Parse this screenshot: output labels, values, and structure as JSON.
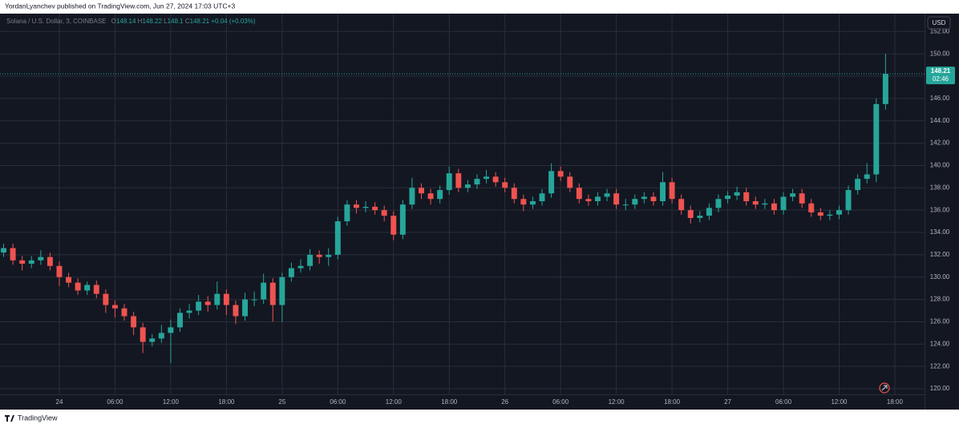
{
  "header": {
    "published": "YordanLyanchev published on TradingView.com, Jun 27, 2024 17:03 UTC+3"
  },
  "footer": {
    "brand": "TradingView"
  },
  "chart_data": {
    "type": "candlestick",
    "symbol": "Solana / U.S. Dollar, 3, COINBASE",
    "legend": {
      "open_label": "O",
      "open": 148.14,
      "high_label": "H",
      "high": 148.22,
      "low_label": "L",
      "low": 148.1,
      "close_label": "C",
      "close": 148.21,
      "change": "+0.04 (+0.03%)"
    },
    "currency": "USD",
    "last_price": {
      "value": 148.21,
      "countdown": "02:46"
    },
    "up_color": "#26a69a",
    "down_color": "#ef5350",
    "grid": true,
    "xlim": [
      -0.39,
      99.2
    ],
    "xticks": [
      {
        "value": 6,
        "label": "24"
      },
      {
        "value": 12,
        "label": "06:00"
      },
      {
        "value": 18,
        "label": "12:00"
      },
      {
        "value": 24,
        "label": "18:00"
      },
      {
        "value": 30,
        "label": "25"
      },
      {
        "value": 36,
        "label": "06:00"
      },
      {
        "value": 42,
        "label": "12:00"
      },
      {
        "value": 48,
        "label": "18:00"
      },
      {
        "value": 54,
        "label": "26"
      },
      {
        "value": 60,
        "label": "06:00"
      },
      {
        "value": 66,
        "label": "12:00"
      },
      {
        "value": 72,
        "label": "18:00"
      },
      {
        "value": 78,
        "label": "27"
      },
      {
        "value": 84,
        "label": "06:00"
      },
      {
        "value": 90,
        "label": "12:00"
      },
      {
        "value": 96,
        "label": "18:00"
      }
    ],
    "ylim": [
      119.5,
      153.6
    ],
    "yticks": [
      {
        "value": 120,
        "label": "120.00"
      },
      {
        "value": 122,
        "label": "122.00"
      },
      {
        "value": 124,
        "label": "124.00"
      },
      {
        "value": 126,
        "label": "126.00"
      },
      {
        "value": 128,
        "label": "128.00"
      },
      {
        "value": 130,
        "label": "130.00"
      },
      {
        "value": 132,
        "label": "132.00"
      },
      {
        "value": 134,
        "label": "134.00"
      },
      {
        "value": 136,
        "label": "136.00"
      },
      {
        "value": 138,
        "label": "138.00"
      },
      {
        "value": 140,
        "label": "140.00"
      },
      {
        "value": 142,
        "label": "142.00"
      },
      {
        "value": 144,
        "label": "144.00"
      },
      {
        "value": 146,
        "label": "146.00"
      },
      {
        "value": 148,
        "label": "148.00"
      },
      {
        "value": 150,
        "label": "150.00"
      },
      {
        "value": 152,
        "label": "152.00"
      }
    ],
    "open": [
      132.2,
      132.6,
      131.5,
      131.2,
      131.5,
      131.8,
      131.0,
      130.0,
      129.5,
      128.8,
      129.3,
      128.5,
      127.5,
      127.2,
      126.5,
      125.5,
      124.2,
      124.5,
      125.0,
      125.5,
      126.8,
      127.0,
      127.8,
      127.5,
      128.5,
      127.5,
      126.5,
      128.0,
      128.0,
      129.5,
      127.5,
      130.0,
      130.8,
      131.0,
      132.0,
      131.8,
      132.0,
      135.0,
      136.5,
      136.2,
      136.3,
      136.0,
      135.5,
      133.8,
      136.5,
      138.0,
      137.5,
      137.0,
      137.8,
      139.3,
      138.0,
      138.3,
      138.8,
      139.0,
      138.5,
      138.0,
      137.0,
      136.5,
      136.8,
      137.5,
      139.5,
      139.0,
      138.0,
      137.0,
      136.8,
      137.2,
      137.5,
      136.5,
      136.5,
      137.0,
      137.2,
      136.8,
      138.5,
      137.0,
      136.0,
      135.3,
      135.5,
      136.2,
      137.0,
      137.3,
      137.6,
      136.8,
      136.5,
      136.6,
      136.0,
      137.2,
      137.5,
      136.6,
      135.8,
      135.5,
      135.6,
      136.0,
      137.8,
      138.8,
      139.2,
      145.5
    ],
    "high": [
      133.0,
      133.0,
      131.9,
      131.9,
      132.4,
      132.2,
      131.4,
      130.4,
      129.9,
      129.6,
      129.7,
      128.9,
      127.9,
      127.6,
      126.9,
      125.9,
      124.9,
      125.7,
      126.2,
      127.2,
      127.6,
      128.4,
      128.3,
      129.6,
      128.9,
      127.9,
      128.6,
      128.7,
      130.3,
      129.9,
      130.4,
      131.3,
      131.6,
      132.5,
      132.4,
      132.6,
      135.4,
      136.9,
      136.9,
      136.8,
      136.7,
      136.4,
      135.9,
      136.9,
      138.9,
      138.4,
      137.9,
      138.2,
      139.9,
      139.7,
      138.7,
      139.2,
      139.6,
      139.4,
      138.9,
      138.4,
      137.4,
      137.2,
      137.9,
      140.2,
      139.9,
      139.4,
      138.4,
      137.4,
      137.6,
      137.9,
      137.9,
      137.0,
      137.4,
      137.6,
      137.6,
      139.4,
      138.9,
      137.4,
      136.4,
      135.9,
      136.6,
      137.4,
      137.7,
      138.1,
      138.0,
      137.2,
      137.0,
      137.0,
      137.6,
      137.9,
      137.9,
      137.0,
      136.2,
      136.0,
      136.4,
      138.2,
      139.2,
      140.2,
      146.0,
      150.0
    ],
    "low": [
      131.8,
      131.1,
      130.6,
      130.8,
      131.1,
      130.6,
      129.2,
      129.1,
      128.4,
      128.4,
      128.1,
      126.8,
      126.4,
      126.1,
      124.8,
      123.2,
      123.8,
      124.1,
      122.3,
      125.1,
      126.3,
      126.6,
      126.9,
      127.1,
      126.6,
      125.8,
      126.1,
      127.4,
      127.6,
      126.0,
      126.0,
      129.6,
      130.4,
      130.6,
      131.2,
      131.0,
      131.6,
      134.6,
      135.7,
      135.8,
      135.6,
      135.0,
      133.3,
      133.4,
      136.1,
      137.0,
      136.5,
      136.6,
      137.4,
      137.6,
      137.6,
      137.9,
      138.4,
      138.1,
      137.6,
      136.6,
      135.9,
      136.1,
      136.4,
      137.1,
      138.6,
      137.6,
      136.6,
      136.4,
      136.4,
      136.8,
      136.1,
      136.0,
      136.1,
      136.6,
      136.4,
      136.4,
      136.6,
      135.6,
      134.8,
      134.9,
      135.1,
      135.8,
      136.6,
      136.9,
      136.4,
      136.1,
      136.1,
      135.6,
      135.6,
      136.8,
      136.2,
      135.4,
      135.1,
      135.1,
      135.2,
      135.6,
      137.4,
      138.4,
      138.5,
      145.0
    ],
    "close": [
      132.6,
      131.5,
      131.2,
      131.5,
      131.8,
      131.0,
      130.0,
      129.5,
      128.8,
      129.3,
      128.5,
      127.5,
      127.2,
      126.5,
      125.5,
      124.2,
      124.5,
      125.0,
      125.5,
      126.8,
      127.0,
      127.8,
      127.5,
      128.5,
      127.5,
      126.5,
      128.0,
      128.0,
      129.5,
      127.5,
      130.0,
      130.8,
      131.0,
      132.0,
      131.8,
      132.0,
      135.0,
      136.5,
      136.2,
      136.3,
      136.0,
      135.5,
      133.8,
      136.5,
      138.0,
      137.5,
      137.0,
      137.8,
      139.3,
      138.0,
      138.3,
      138.8,
      139.0,
      138.5,
      138.0,
      137.0,
      136.5,
      136.8,
      137.5,
      139.5,
      139.0,
      138.0,
      137.0,
      136.8,
      137.2,
      137.5,
      136.5,
      136.5,
      137.0,
      137.2,
      136.8,
      138.5,
      137.0,
      136.0,
      135.3,
      135.5,
      136.2,
      137.0,
      137.3,
      137.6,
      136.8,
      136.5,
      136.6,
      136.0,
      137.2,
      137.5,
      136.6,
      135.8,
      135.5,
      135.6,
      136.0,
      137.8,
      138.8,
      139.2,
      145.5,
      148.21
    ]
  }
}
